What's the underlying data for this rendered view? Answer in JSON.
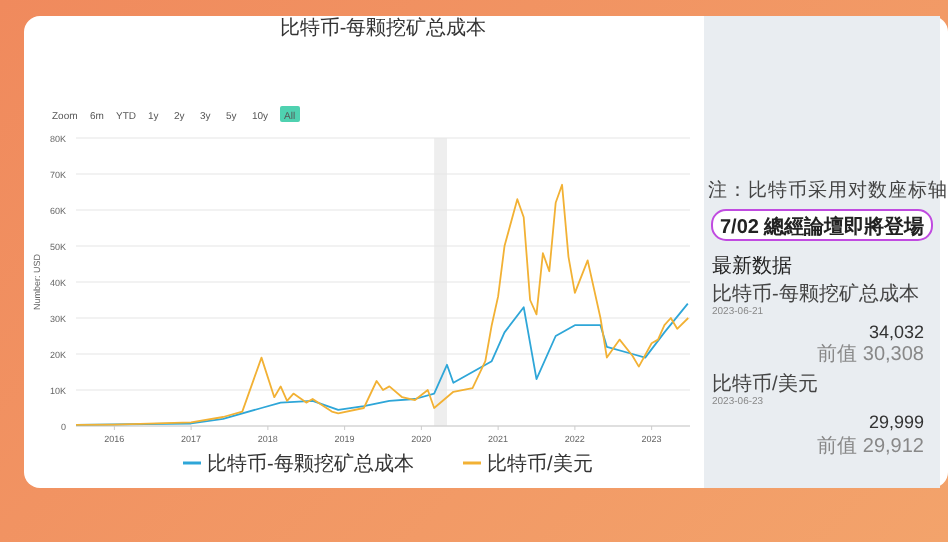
{
  "chart_data": [
    {
      "type": "line",
      "title": "比特币-每颗挖矿总成本",
      "ylabel": "Number: USD",
      "annotations": [
        "Zoom",
        "6m",
        "YTD",
        "1y",
        "2y",
        "3y",
        "5y",
        "10y",
        "All"
      ],
      "xlim": [
        "2015-07",
        "2023-07"
      ],
      "xticks": [
        {
          "value": "2016",
          "label": "2016"
        },
        {
          "value": "2017",
          "label": "2017"
        },
        {
          "value": "2018",
          "label": "2018"
        },
        {
          "value": "2019",
          "label": "2019"
        },
        {
          "value": "2020",
          "label": "2020"
        },
        {
          "value": "2021",
          "label": "2021"
        },
        {
          "value": "2022",
          "label": "2022"
        },
        {
          "value": "2023",
          "label": "2023"
        }
      ],
      "ylim": [
        0,
        80000
      ],
      "yticks": [
        0,
        {
          "value": 10000,
          "label": "10K"
        },
        {
          "value": 20000,
          "label": "20K"
        },
        {
          "value": 30000,
          "label": "30K"
        },
        {
          "value": 40000,
          "label": "40K"
        },
        {
          "value": 50000,
          "label": "50K"
        },
        {
          "value": 60000,
          "label": "60K"
        },
        {
          "value": 70000,
          "label": "70K"
        },
        {
          "value": 80000,
          "label": "80K"
        }
      ],
      "grid": "y",
      "legend": "bottom",
      "bands": [
        {
          "axis": "x",
          "from": "2020-03",
          "to": "2020-05",
          "color": "#eeeeee"
        }
      ],
      "series": [
        {
          "name": "比特币-每颗挖矿总成本",
          "color": "#2ea6d8",
          "x": [
            "2015-07",
            "2017-01",
            "2017-06",
            "2017-12",
            "2018-03",
            "2018-08",
            "2018-12",
            "2019-04",
            "2019-08",
            "2019-12",
            "2020-03",
            "2020-05",
            "2020-06",
            "2020-12",
            "2021-02",
            "2021-05",
            "2021-07",
            "2021-10",
            "2022-01",
            "2022-05",
            "2022-06",
            "2022-10",
            "2022-12",
            "2023-03",
            "2023-06-21"
          ],
          "values": [
            300,
            700,
            2000,
            5000,
            6500,
            7000,
            4500,
            5500,
            7000,
            7500,
            9000,
            17000,
            12000,
            18000,
            26000,
            33000,
            13000,
            25000,
            28000,
            28000,
            22000,
            20000,
            19000,
            26000,
            34000
          ]
        },
        {
          "name": "比特币/美元",
          "color": "#f2b134",
          "x": [
            "2015-07",
            "2016-01",
            "2017-01",
            "2017-06",
            "2017-09",
            "2017-12",
            "2018-02",
            "2018-03",
            "2018-04",
            "2018-05",
            "2018-07",
            "2018-08",
            "2018-11",
            "2018-12",
            "2019-04",
            "2019-06",
            "2019-07",
            "2019-08",
            "2019-10",
            "2019-12",
            "2020-02",
            "2020-03",
            "2020-06",
            "2020-09",
            "2020-11",
            "2020-12",
            "2021-01",
            "2021-02",
            "2021-04",
            "2021-05",
            "2021-06",
            "2021-07",
            "2021-08",
            "2021-09",
            "2021-10",
            "2021-11",
            "2021-12",
            "2022-01",
            "2022-03",
            "2022-05",
            "2022-06",
            "2022-08",
            "2022-10",
            "2022-11",
            "2023-01",
            "2023-02",
            "2023-03",
            "2023-04",
            "2023-05",
            "2023-06-23"
          ],
          "values": [
            300,
            400,
            1000,
            2500,
            4000,
            19000,
            8000,
            11000,
            7000,
            9000,
            6500,
            7500,
            4000,
            3500,
            5000,
            12500,
            10000,
            11000,
            8000,
            7200,
            10000,
            5000,
            9500,
            10500,
            18000,
            28000,
            36000,
            50000,
            63000,
            58000,
            35000,
            31000,
            48000,
            43000,
            62000,
            67000,
            47000,
            37000,
            46000,
            30000,
            19000,
            24000,
            19500,
            16500,
            23000,
            24000,
            28000,
            30000,
            27000,
            30000
          ]
        }
      ]
    },
    {
      "type": "other",
      "annotations": [
        "注：比特币采用对数座标轴",
        "7/02 總經論壇即將登場",
        "最新数据",
        "比特币-每颗挖矿总成本",
        "2023-06-21",
        "34,032",
        "前值 30,308",
        "比特币/美元",
        "2023-06-23",
        "29,999",
        "前值 29,912"
      ]
    }
  ]
}
